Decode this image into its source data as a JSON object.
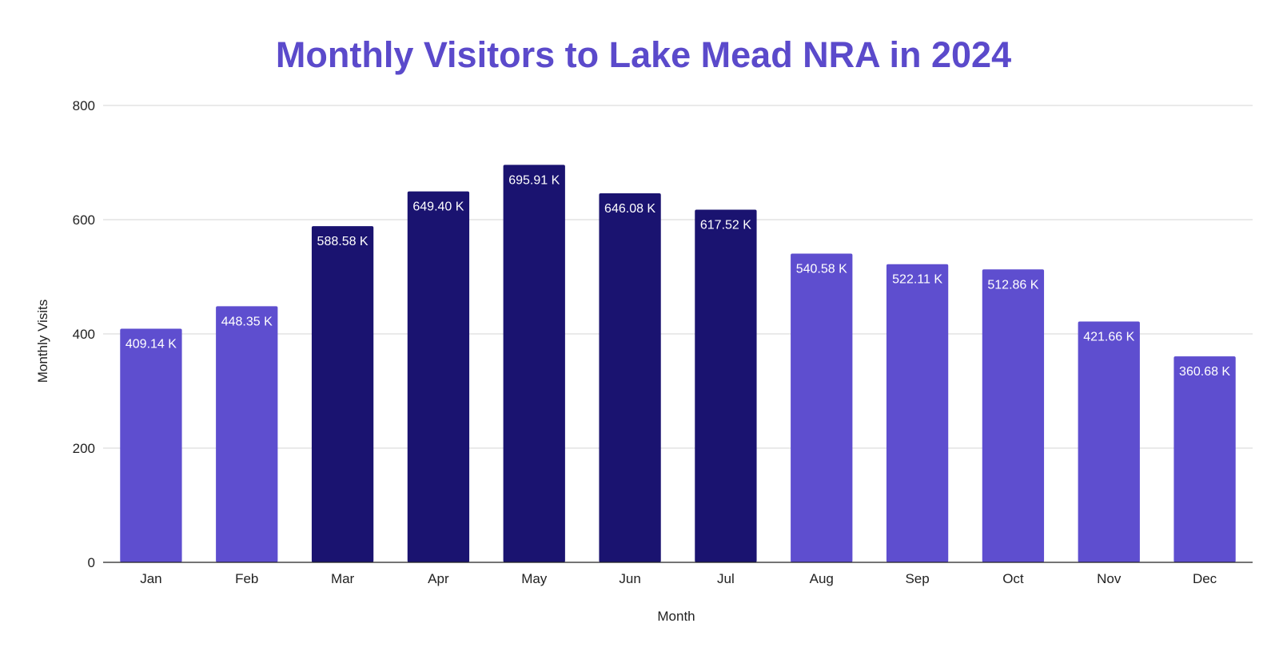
{
  "chart_data": {
    "type": "bar",
    "title": "Monthly Visitors to Lake Mead NRA in 2024",
    "xlabel": "Month",
    "ylabel": "Monthly Visits",
    "ylim": [
      0,
      800
    ],
    "yticks": [
      0,
      200,
      400,
      600,
      800
    ],
    "grid": true,
    "categories": [
      "Jan",
      "Feb",
      "Mar",
      "Apr",
      "May",
      "Jun",
      "Jul",
      "Aug",
      "Sep",
      "Oct",
      "Nov",
      "Dec"
    ],
    "values": [
      409.14,
      448.35,
      588.58,
      649.4,
      695.91,
      646.08,
      617.52,
      540.58,
      522.11,
      512.86,
      421.66,
      360.68
    ],
    "data_labels": [
      "409.14 K",
      "448.35 K",
      "588.58 K",
      "649.40 K",
      "695.91 K",
      "646.08 K",
      "617.52 K",
      "540.58 K",
      "522.11 K",
      "512.86 K",
      "421.66 K",
      "360.68 K"
    ],
    "bar_colors": [
      "#5e4ecf",
      "#5e4ecf",
      "#1a1370",
      "#1a1370",
      "#1a1370",
      "#1a1370",
      "#1a1370",
      "#5e4ecf",
      "#5e4ecf",
      "#5e4ecf",
      "#5e4ecf",
      "#5e4ecf"
    ],
    "colors": {
      "title": "#5b4acb",
      "light_bar": "#5e4ecf",
      "dark_bar": "#1a1370",
      "grid": "#d6d6d6",
      "axis": "#222222"
    }
  }
}
